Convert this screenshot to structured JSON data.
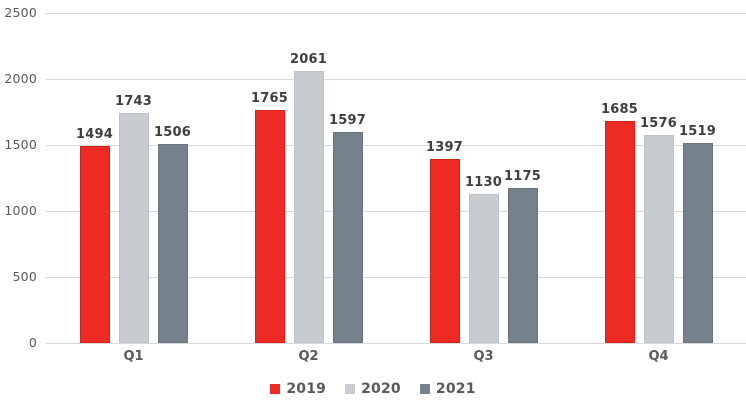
{
  "chart_data": {
    "type": "bar",
    "title": "",
    "xlabel": "",
    "ylabel": "",
    "categories": [
      "Q1",
      "Q2",
      "Q3",
      "Q4"
    ],
    "series": [
      {
        "name": "2019",
        "color": "#ED2A23",
        "border": "#D4221C",
        "values": [
          1494,
          1765,
          1397,
          1685
        ]
      },
      {
        "name": "2020",
        "color": "#C8CCD1",
        "border": "#BDC2C8",
        "values": [
          1743,
          2061,
          1130,
          1576
        ]
      },
      {
        "name": "2021",
        "color": "#75828D",
        "border": "#68757F",
        "values": [
          1506,
          1597,
          1175,
          1519
        ]
      }
    ],
    "ylim": [
      0,
      2500
    ],
    "yticks": [
      0,
      500,
      1000,
      1500,
      2000,
      2500
    ],
    "grid": true,
    "legend_position": "bottom",
    "data_labels": true
  },
  "style": {
    "background": "#FFFFFF",
    "grid_color": "#D9D9D9",
    "tick_color": "#595959",
    "data_label_color": "#3F3F3F",
    "legend_text_color": "#595959"
  }
}
